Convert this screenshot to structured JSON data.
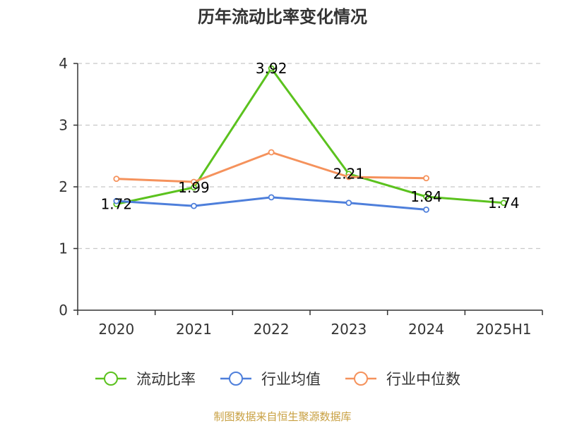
{
  "chart_data": {
    "type": "line",
    "title": "历年流动比率变化情况",
    "categories": [
      "2020",
      "2021",
      "2022",
      "2023",
      "2024",
      "2025H1"
    ],
    "ylim": [
      0,
      4
    ],
    "yticks": [
      "0",
      "1",
      "2",
      "3",
      "4"
    ],
    "grid": true,
    "legend_position": "bottom",
    "series": [
      {
        "name": "流动比率",
        "color": "#5bc21e",
        "values": [
          1.72,
          1.99,
          3.92,
          2.21,
          1.84,
          1.74
        ],
        "labels": [
          "1.72",
          "1.99",
          "3.92",
          "2.21",
          "1.84",
          "1.74"
        ]
      },
      {
        "name": "行业均值",
        "color": "#4e7fdb",
        "values": [
          1.77,
          1.69,
          1.83,
          1.74,
          1.63,
          null
        ]
      },
      {
        "name": "行业中位数",
        "color": "#f5925c",
        "values": [
          2.13,
          2.08,
          2.56,
          2.16,
          2.14,
          null
        ]
      }
    ]
  },
  "source": "制图数据来自恒生聚源数据库"
}
